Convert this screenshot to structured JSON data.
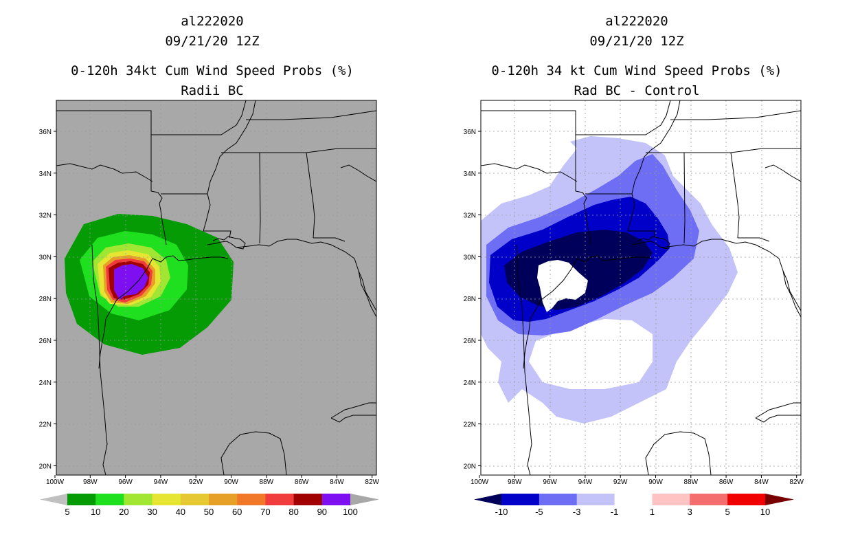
{
  "panels": [
    {
      "id": "left",
      "storm_id": "al222020",
      "datetime": "09/21/20 12Z",
      "title": "0-120h 34kt Cum Wind Speed Probs (%)",
      "subtitle": "Radii BC",
      "background": "#a8a8a8",
      "lat_labels": [
        "36N",
        "34N",
        "32N",
        "30N",
        "28N",
        "26N",
        "24N",
        "22N",
        "20N"
      ],
      "lon_labels": [
        "100W",
        "98W",
        "96W",
        "94W",
        "92W",
        "90W",
        "88W",
        "86W",
        "84W",
        "82W"
      ],
      "colorbar": {
        "labels": [
          "5",
          "10",
          "20",
          "30",
          "40",
          "50",
          "60",
          "70",
          "80",
          "90",
          "100"
        ],
        "colors": [
          "#049b04",
          "#1ee01e",
          "#a0e632",
          "#e6e632",
          "#e6c832",
          "#e6a028",
          "#f07828",
          "#f03c3c",
          "#a00000",
          "#7d0ff0"
        ],
        "under": "#c0c0c0",
        "over": "#a8a8a8"
      }
    },
    {
      "id": "right",
      "storm_id": "al222020",
      "datetime": "09/21/20 12Z",
      "title": "0-120h 34 kt Cum Wind Speed Probs (%)",
      "subtitle": "Rad BC - Control",
      "background": "#ffffff",
      "lat_labels": [
        "36N",
        "34N",
        "32N",
        "30N",
        "28N",
        "26N",
        "24N",
        "22N",
        "20N"
      ],
      "lon_labels": [
        "100W",
        "98W",
        "96W",
        "94W",
        "92W",
        "90W",
        "88W",
        "86W",
        "84W",
        "82W"
      ],
      "colorbar": {
        "labels": [
          "-10",
          "-5",
          "-3",
          "-1",
          "1",
          "3",
          "5",
          "10"
        ],
        "colors": [
          "#0000c8",
          "#6e6ef5",
          "#c3c3fa",
          "#ffffff",
          "#ffc3c3",
          "#f56e6e",
          "#f00000"
        ],
        "under": "#00005a",
        "over": "#780000"
      }
    }
  ]
}
